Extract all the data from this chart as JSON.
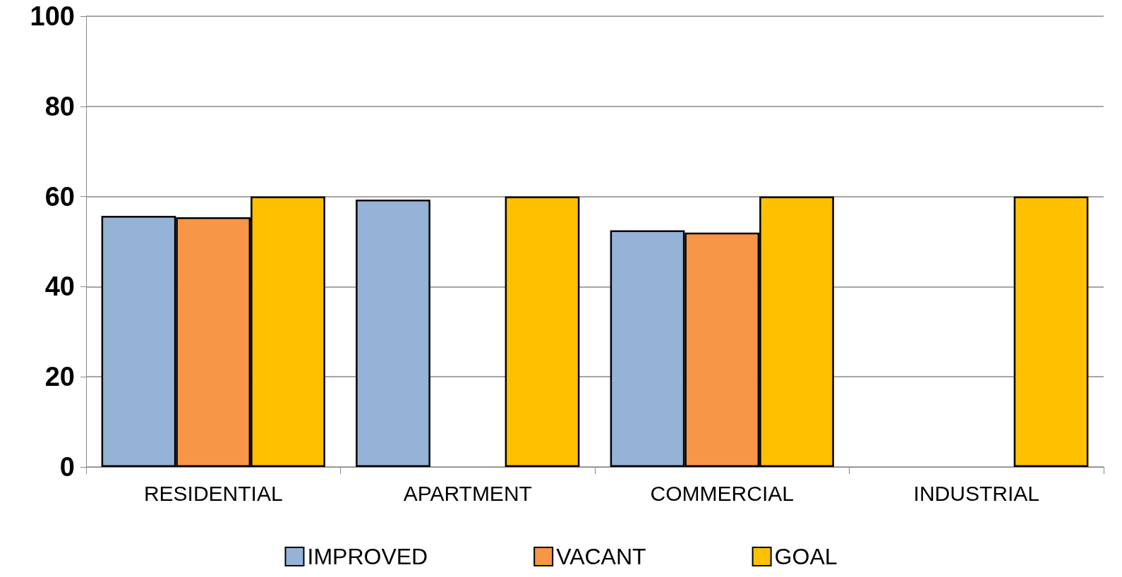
{
  "chart_data": {
    "type": "bar",
    "categories": [
      "RESIDENTIAL",
      "APARTMENT",
      "COMMERCIAL",
      "INDUSTRIAL"
    ],
    "series": [
      {
        "name": "IMPROVED",
        "color": "#95b3d7",
        "values": [
          55.7,
          59.3,
          52.5,
          null
        ]
      },
      {
        "name": "VACANT",
        "color": "#f79646",
        "values": [
          55.4,
          null,
          52.0,
          null
        ]
      },
      {
        "name": "GOAL",
        "color": "#ffc000",
        "values": [
          60,
          60,
          60,
          60
        ]
      }
    ],
    "ylim": [
      0,
      100
    ],
    "yticks": [
      0,
      20,
      40,
      60,
      80,
      100
    ],
    "grid": "y",
    "legend": "bottom"
  }
}
